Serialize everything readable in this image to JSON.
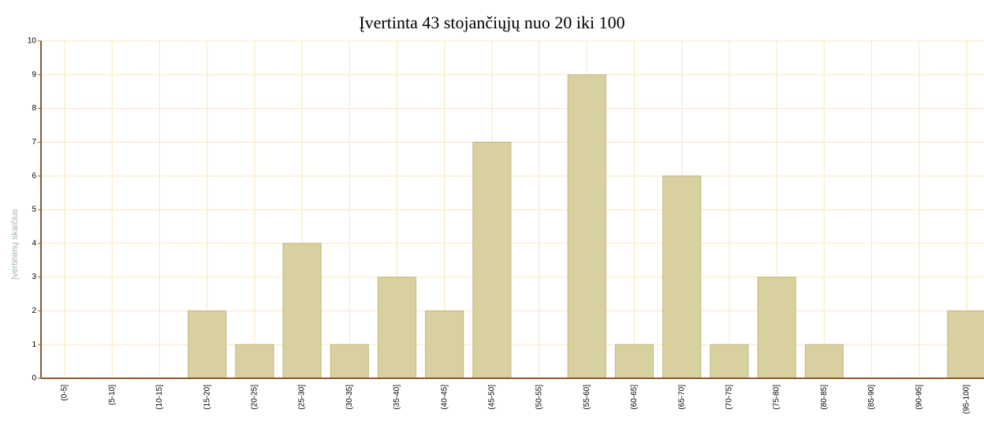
{
  "chart_data": {
    "type": "bar",
    "title": "Įvertinta 43 stojančiųjų nuo 20 iki 100",
    "y_label": "Įvertinimų skaičius",
    "categories": [
      "(0-5]",
      "(5-10]",
      "(10-15]",
      "(15-20]",
      "(20-25]",
      "(25-30]",
      "(30-35]",
      "(35-40]",
      "(40-45]",
      "(45-50]",
      "(50-55]",
      "(55-60]",
      "(60-65]",
      "(65-70]",
      "(70-75]",
      "(75-80]",
      "(80-85]",
      "(85-90]",
      "(90-95]",
      "(95-100]"
    ],
    "values": [
      0,
      0,
      0,
      2,
      1,
      4,
      1,
      3,
      2,
      7,
      0,
      9,
      1,
      6,
      1,
      3,
      1,
      0,
      0,
      2
    ],
    "color": "#d9d0a0",
    "ylim": [
      0,
      10
    ],
    "yticks": [
      0,
      1,
      2,
      3,
      4,
      5,
      6,
      7,
      8,
      9,
      10
    ],
    "grid": true
  }
}
